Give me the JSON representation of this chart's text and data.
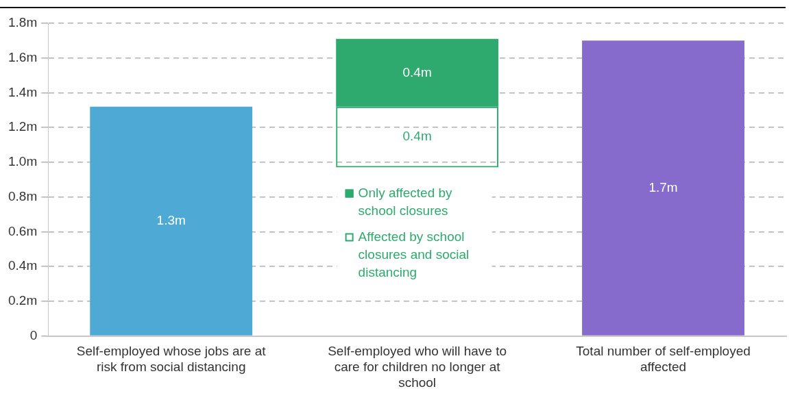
{
  "chart_data": {
    "type": "bar",
    "categories": [
      "Self-employed whose jobs are at risk from social distancing",
      "Self-employed who will have to care for children no longer at school",
      "Total number of self-employed affected"
    ],
    "series": [
      {
        "colors": [
          "#4eaad4",
          null,
          "#866bcc"
        ],
        "values": [
          1.32,
          null,
          1.7
        ],
        "value_labels": [
          "1.3m",
          null,
          "1.7m"
        ]
      },
      {
        "name": "Affected by school closures and social distancing",
        "color": "#2eaa6e",
        "base": [
          null,
          0.97,
          null
        ],
        "values": [
          null,
          0.35,
          null
        ],
        "value_labels": [
          null,
          "0.4m",
          null
        ]
      },
      {
        "name": "Only affected by school closures",
        "color": "#2eaa6e",
        "base": [
          null,
          1.32,
          null
        ],
        "values": [
          null,
          0.39,
          null
        ],
        "value_labels": [
          null,
          "0.4m",
          null
        ]
      }
    ],
    "ylim": [
      0,
      1.8
    ],
    "yticks": [
      0,
      {
        "value": 0.2,
        "label": "0.2m"
      },
      {
        "value": 0.4,
        "label": "0.4m"
      },
      {
        "value": 0.6,
        "label": "0.6m"
      },
      {
        "value": 0.8,
        "label": "0.8m"
      },
      {
        "value": 1.0,
        "label": "1.0m"
      },
      {
        "value": 1.2,
        "label": "1.2m"
      },
      {
        "value": 1.4,
        "label": "1.4m"
      },
      {
        "value": 1.6,
        "label": "1.6m"
      },
      {
        "value": 1.8,
        "label": "1.8m"
      }
    ],
    "grid": "y",
    "legend": "bottom"
  }
}
